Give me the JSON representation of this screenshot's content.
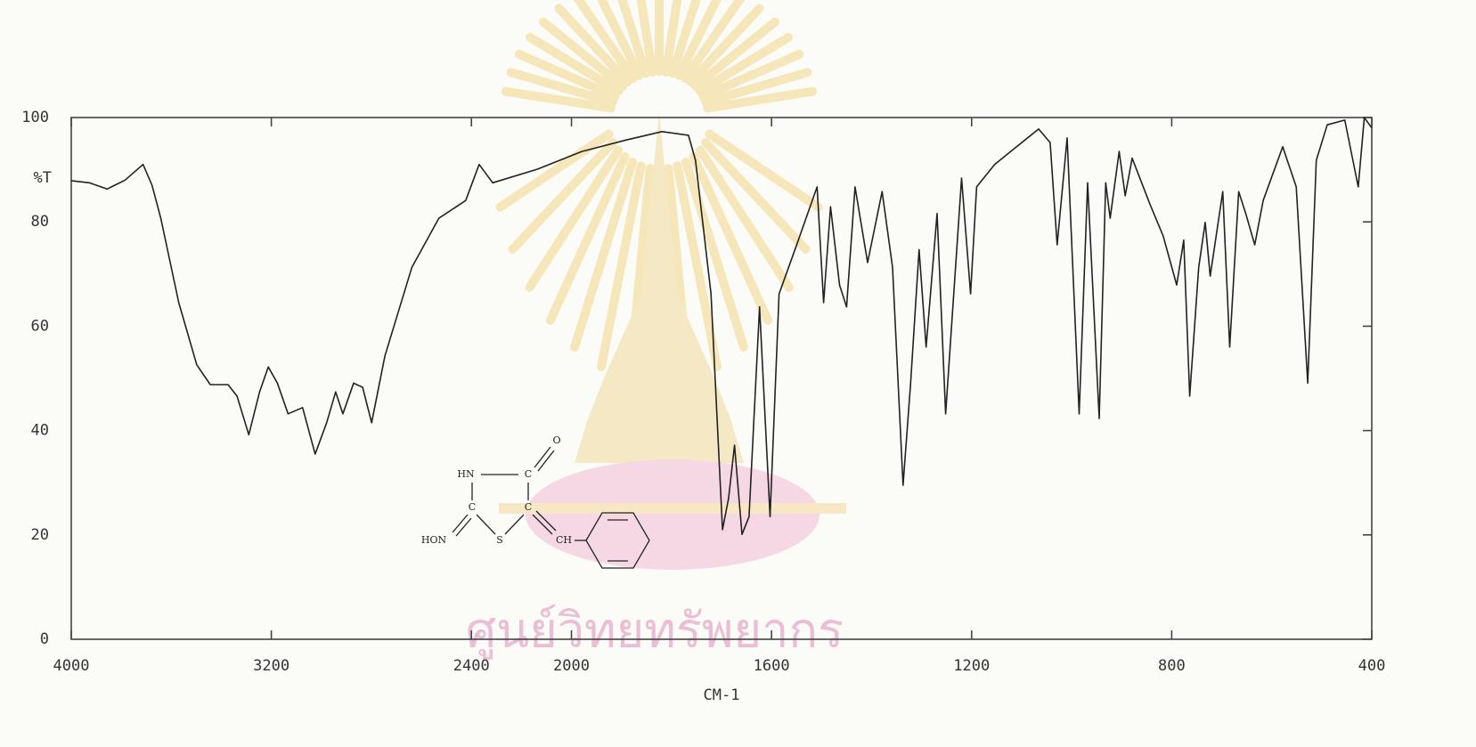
{
  "chart_data": {
    "type": "line",
    "x_label": "CM-1",
    "y_label": "%T",
    "xlim": [
      4000,
      400
    ],
    "ylim": [
      0,
      100
    ],
    "x_scale": {
      "break": 2000,
      "factor": 2
    },
    "xticks": [
      4000,
      3200,
      2400,
      2000,
      1600,
      1200,
      800,
      400
    ],
    "yticks": [
      0,
      20,
      40,
      60,
      80,
      100
    ],
    "watermark": "ศูนย์วิทยทรัพยากร",
    "annotations": [
      "O",
      "HN",
      "C",
      "C",
      "C",
      "HON",
      "S",
      "CH"
    ],
    "series": [
      {
        "color": "#222222",
        "x": [
          4000,
          3928,
          3857,
          3785,
          3713,
          3677,
          3642,
          3570,
          3498,
          3444,
          3373,
          3337,
          3290,
          3247,
          3212,
          3176,
          3133,
          3075,
          3025,
          2979,
          2943,
          2914,
          2871,
          2835,
          2799,
          2746,
          2638,
          2530,
          2423,
          2369,
          2315,
          2136,
          1979,
          1890,
          1819,
          1766,
          1752,
          1721,
          1698,
          1686,
          1674,
          1659,
          1645,
          1624,
          1603,
          1585,
          1553,
          1509,
          1496,
          1482,
          1464,
          1450,
          1433,
          1408,
          1379,
          1358,
          1337,
          1322,
          1305,
          1291,
          1269,
          1252,
          1220,
          1202,
          1190,
          1154,
          1110,
          1066,
          1043,
          1029,
          1009,
          985,
          968,
          945,
          932,
          923,
          905,
          893,
          879,
          843,
          817,
          790,
          776,
          764,
          746,
          733,
          723,
          698,
          684,
          666,
          652,
          634,
          617,
          578,
          551,
          528,
          511,
          489,
          454,
          427,
          415,
          400
        ],
        "values": [
          87.9,
          87.5,
          86.3,
          88,
          91,
          87,
          80.7,
          64.5,
          52.6,
          48.8,
          48.8,
          46.6,
          39.2,
          47.4,
          52.2,
          49.1,
          43.2,
          44.4,
          35.5,
          41.5,
          47.4,
          43.2,
          49.1,
          48.3,
          41.5,
          54.3,
          71.3,
          80.7,
          84.1,
          91,
          87.5,
          90.1,
          93.5,
          95.7,
          97.3,
          96.6,
          91.8,
          66.2,
          21,
          27,
          37.2,
          20.1,
          23.5,
          63.7,
          23.5,
          66.2,
          74.7,
          86.7,
          64.5,
          82.9,
          67.9,
          63.7,
          86.7,
          72.2,
          85.8,
          71.3,
          29.5,
          49.1,
          74.7,
          56,
          81.6,
          43.2,
          88.4,
          66.2,
          86.7,
          91,
          94.4,
          97.8,
          95.2,
          75.6,
          96.1,
          43.2,
          87.5,
          42.3,
          87.5,
          80.7,
          93.5,
          85,
          92.2,
          83.3,
          77.3,
          67.9,
          76.5,
          46.6,
          71.3,
          79.9,
          69.6,
          85.8,
          56,
          85.8,
          81.6,
          75.6,
          84.1,
          94.4,
          86.7,
          49.1,
          91.8,
          98.6,
          99.5,
          86.7,
          100,
          98
        ]
      }
    ]
  }
}
